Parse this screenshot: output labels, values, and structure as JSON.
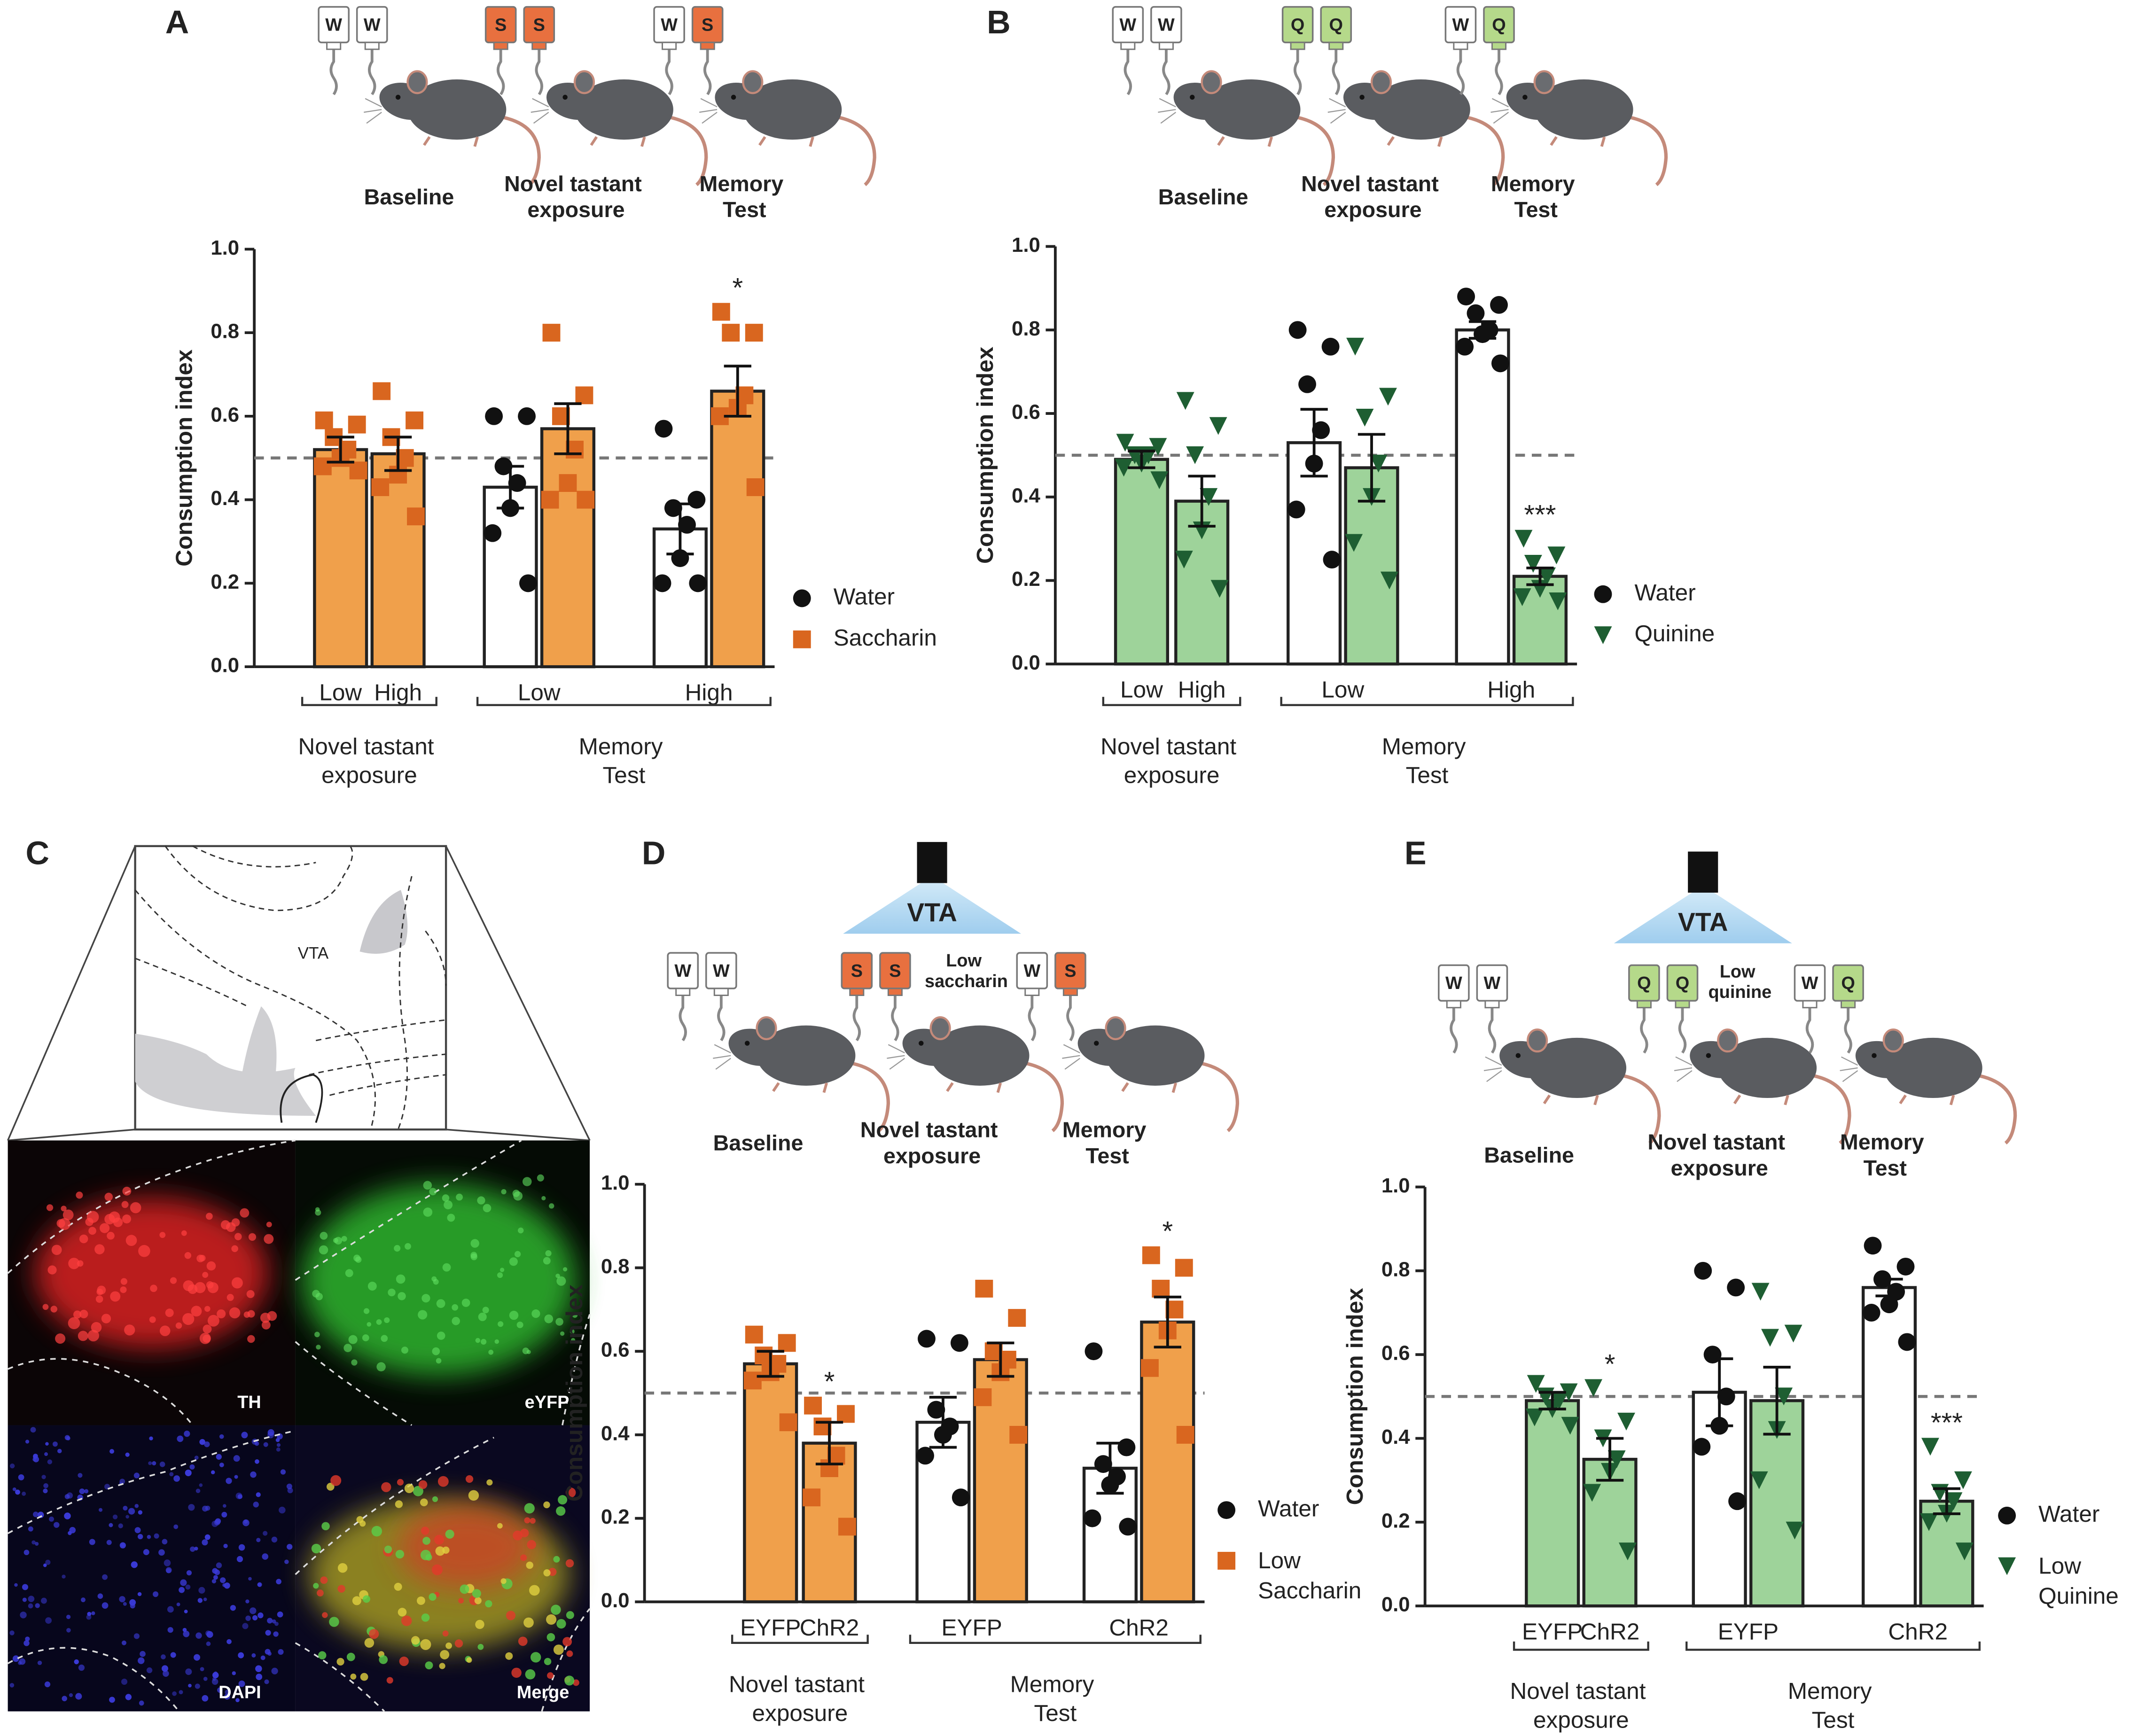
{
  "chart_data": [
    {
      "type": "bar",
      "panel": "A",
      "conditions": [
        "Baseline",
        "Novel tastant exposure",
        "Memory Test"
      ],
      "bottles": [
        [
          {
            "label": "W",
            "color": "#ffffff"
          },
          {
            "label": "W",
            "color": "#ffffff"
          }
        ],
        [
          {
            "label": "S",
            "color": "#e8703f"
          },
          {
            "label": "S",
            "color": "#e8703f"
          }
        ],
        [
          {
            "label": "W",
            "color": "#ffffff"
          },
          {
            "label": "S",
            "color": "#e8703f"
          }
        ]
      ],
      "y_label": "Consumption index",
      "ylim": [
        0,
        1
      ],
      "yticks": [
        {
          "value": 0,
          "label": "0.0"
        },
        0.2,
        0.4,
        0.6,
        0.8,
        {
          "value": 1,
          "label": "1.0"
        }
      ],
      "reference_line": 0.5,
      "categories": [
        "Low",
        "High",
        "Low",
        "High"
      ],
      "groups": [
        "Novel tastant exposure",
        "Memory Test"
      ],
      "series": [
        {
          "name": "Water",
          "color": "#ffffff",
          "marker": "circle",
          "marker_color": "#111111",
          "values": [
            null,
            null,
            0.43,
            0.33
          ],
          "errors": [
            null,
            null,
            0.05,
            0.06
          ],
          "points": [
            null,
            null,
            [
              0.6,
              0.6,
              0.48,
              0.44,
              0.38,
              0.32,
              0.2
            ],
            [
              0.57,
              0.4,
              0.38,
              0.34,
              0.26,
              0.2,
              0.2
            ]
          ]
        },
        {
          "name": "Saccharin",
          "color": "#f0a04b",
          "marker": "square",
          "marker_color": "#d9661f",
          "values": [
            0.52,
            0.51,
            0.57,
            0.66
          ],
          "errors": [
            0.03,
            0.04,
            0.06,
            0.06
          ],
          "points": [
            [
              0.59,
              0.58,
              0.55,
              0.52,
              0.5,
              0.48,
              0.47
            ],
            [
              0.66,
              0.59,
              0.55,
              0.5,
              0.46,
              0.43,
              0.36
            ],
            [
              0.8,
              0.65,
              0.6,
              0.52,
              0.44,
              0.4,
              0.4
            ],
            [
              0.85,
              0.8,
              0.8,
              0.65,
              0.62,
              0.6,
              0.43
            ]
          ],
          "significance": [
            null,
            null,
            null,
            "*"
          ]
        }
      ]
    },
    {
      "type": "bar",
      "panel": "B",
      "conditions": [
        "Baseline",
        "Novel tastant exposure",
        "Memory Test"
      ],
      "bottles": [
        [
          {
            "label": "W",
            "color": "#ffffff"
          },
          {
            "label": "W",
            "color": "#ffffff"
          }
        ],
        [
          {
            "label": "Q",
            "color": "#b5d98a"
          },
          {
            "label": "Q",
            "color": "#b5d98a"
          }
        ],
        [
          {
            "label": "W",
            "color": "#ffffff"
          },
          {
            "label": "Q",
            "color": "#b5d98a"
          }
        ]
      ],
      "y_label": "Consumption index",
      "ylim": [
        0,
        1
      ],
      "yticks": [
        {
          "value": 0,
          "label": "0.0"
        },
        0.2,
        0.4,
        0.6,
        0.8,
        {
          "value": 1,
          "label": "1.0"
        }
      ],
      "reference_line": 0.5,
      "categories": [
        "Low",
        "High",
        "Low",
        "High"
      ],
      "groups": [
        "Novel tastant exposure",
        "Memory Test"
      ],
      "series": [
        {
          "name": "Water",
          "color": "#ffffff",
          "marker": "circle",
          "marker_color": "#111111",
          "values": [
            null,
            null,
            0.53,
            0.8
          ],
          "errors": [
            null,
            null,
            0.08,
            0.02
          ],
          "points": [
            null,
            null,
            [
              0.8,
              0.76,
              0.67,
              0.56,
              0.48,
              0.37,
              0.25
            ],
            [
              0.88,
              0.86,
              0.84,
              0.8,
              0.79,
              0.76,
              0.72
            ]
          ]
        },
        {
          "name": "Quinine",
          "color": "#9ed39a",
          "marker": "triangle",
          "marker_color": "#1e5e32",
          "values": [
            0.49,
            0.39,
            0.47,
            0.21
          ],
          "errors": [
            0.02,
            0.06,
            0.08,
            0.02
          ],
          "points": [
            [
              0.53,
              0.52,
              0.5,
              0.5,
              0.48,
              0.47,
              0.44
            ],
            [
              0.63,
              0.57,
              0.5,
              0.4,
              0.32,
              0.25,
              0.18
            ],
            [
              0.76,
              0.64,
              0.59,
              0.48,
              0.4,
              0.29,
              0.2
            ],
            [
              0.3,
              0.26,
              0.24,
              0.21,
              0.18,
              0.16,
              0.15
            ]
          ],
          "significance": [
            null,
            null,
            null,
            "***"
          ]
        }
      ]
    },
    {
      "type": "bar",
      "panel": "D",
      "stimulation": "VTA",
      "note": "Low saccharin",
      "conditions": [
        "Baseline",
        "Novel tastant exposure",
        "Memory Test"
      ],
      "bottles": [
        [
          {
            "label": "W",
            "color": "#ffffff"
          },
          {
            "label": "W",
            "color": "#ffffff"
          }
        ],
        [
          {
            "label": "S",
            "color": "#e8703f"
          },
          {
            "label": "S",
            "color": "#e8703f"
          }
        ],
        [
          {
            "label": "W",
            "color": "#ffffff"
          },
          {
            "label": "S",
            "color": "#e8703f"
          }
        ]
      ],
      "y_label": "Consumption index",
      "ylim": [
        0,
        1
      ],
      "yticks": [
        {
          "value": 0,
          "label": "0.0"
        },
        0.2,
        0.4,
        0.6,
        0.8,
        {
          "value": 1,
          "label": "1.0"
        }
      ],
      "reference_line": 0.5,
      "categories": [
        "EYFP",
        "ChR2",
        "EYFP",
        "ChR2"
      ],
      "groups": [
        "Novel tastant exposure",
        "Memory Test"
      ],
      "series": [
        {
          "name": "Water",
          "color": "#ffffff",
          "marker": "circle",
          "marker_color": "#111111",
          "values": [
            null,
            null,
            0.43,
            0.32
          ],
          "errors": [
            null,
            null,
            0.06,
            0.06
          ],
          "points": [
            null,
            null,
            [
              0.63,
              0.62,
              0.46,
              0.42,
              0.4,
              0.35,
              0.25
            ],
            [
              0.6,
              0.37,
              0.33,
              0.3,
              0.28,
              0.2,
              0.18
            ]
          ]
        },
        {
          "name": "Low Saccharin",
          "color": "#f0a04b",
          "marker": "square",
          "marker_color": "#d9661f",
          "values": [
            0.57,
            0.38,
            0.58,
            0.67
          ],
          "errors": [
            0.03,
            0.05,
            0.04,
            0.06
          ],
          "points": [
            [
              0.64,
              0.62,
              0.59,
              0.57,
              0.55,
              0.53,
              0.43
            ],
            [
              0.47,
              0.45,
              0.42,
              0.35,
              0.32,
              0.25,
              0.18
            ],
            [
              0.75,
              0.68,
              0.6,
              0.58,
              0.55,
              0.49,
              0.4
            ],
            [
              0.83,
              0.8,
              0.75,
              0.7,
              0.65,
              0.56,
              0.4
            ]
          ],
          "significance": [
            null,
            "*",
            null,
            "*"
          ]
        }
      ]
    },
    {
      "type": "bar",
      "panel": "E",
      "stimulation": "VTA",
      "note": "Low quinine",
      "conditions": [
        "Baseline",
        "Novel tastant exposure",
        "Memory Test"
      ],
      "bottles": [
        [
          {
            "label": "W",
            "color": "#ffffff"
          },
          {
            "label": "W",
            "color": "#ffffff"
          }
        ],
        [
          {
            "label": "Q",
            "color": "#b5d98a"
          },
          {
            "label": "Q",
            "color": "#b5d98a"
          }
        ],
        [
          {
            "label": "W",
            "color": "#ffffff"
          },
          {
            "label": "Q",
            "color": "#b5d98a"
          }
        ]
      ],
      "y_label": "Consumption index",
      "ylim": [
        0,
        1
      ],
      "yticks": [
        {
          "value": 0,
          "label": "0.0"
        },
        0.2,
        0.4,
        0.6,
        0.8,
        {
          "value": 1,
          "label": "1.0"
        }
      ],
      "reference_line": 0.5,
      "categories": [
        "EYFP",
        "ChR2",
        "EYFP",
        "ChR2"
      ],
      "groups": [
        "Novel tastant exposure",
        "Memory Test"
      ],
      "series": [
        {
          "name": "Water",
          "color": "#ffffff",
          "marker": "circle",
          "marker_color": "#111111",
          "values": [
            null,
            null,
            0.51,
            0.76
          ],
          "errors": [
            null,
            null,
            0.08,
            0.02
          ],
          "points": [
            null,
            null,
            [
              0.8,
              0.76,
              0.6,
              0.5,
              0.43,
              0.38,
              0.25
            ],
            [
              0.86,
              0.81,
              0.78,
              0.75,
              0.72,
              0.7,
              0.63
            ]
          ]
        },
        {
          "name": "Low Quinine",
          "color": "#9ed39a",
          "marker": "triangle",
          "marker_color": "#1e5e32",
          "values": [
            0.49,
            0.35,
            0.49,
            0.25
          ],
          "errors": [
            0.02,
            0.05,
            0.08,
            0.03
          ],
          "points": [
            [
              0.53,
              0.51,
              0.5,
              0.49,
              0.47,
              0.45,
              0.43
            ],
            [
              0.52,
              0.44,
              0.4,
              0.35,
              0.32,
              0.27,
              0.13
            ],
            [
              0.75,
              0.65,
              0.64,
              0.5,
              0.42,
              0.3,
              0.18
            ],
            [
              0.38,
              0.3,
              0.27,
              0.25,
              0.22,
              0.2,
              0.13
            ]
          ],
          "significance": [
            null,
            "*",
            null,
            "***"
          ]
        }
      ]
    }
  ],
  "figure_c": {
    "panel": "C",
    "atlas_label": "VTA",
    "channels": [
      "TH",
      "eYFP",
      "DAPI",
      "Merge"
    ]
  }
}
